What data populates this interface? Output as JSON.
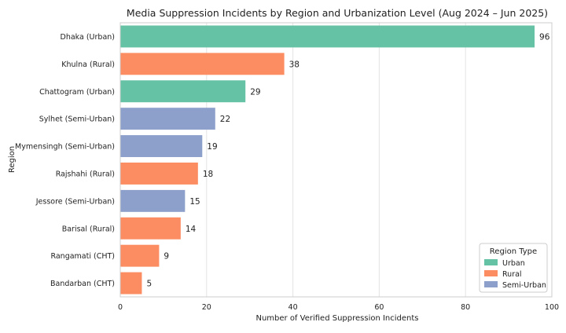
{
  "chart_data": {
    "type": "bar",
    "orientation": "horizontal",
    "title": "Media Suppression Incidents by Region and Urbanization Level (Aug 2024 – Jun 2025)",
    "xlabel": "Number of Verified Suppression Incidents",
    "ylabel": "Region",
    "xlim": [
      0,
      100
    ],
    "xticks": [
      0,
      20,
      40,
      60,
      80,
      100
    ],
    "grid": "vertical",
    "categories": [
      "Dhaka (Urban)",
      "Khulna (Rural)",
      "Chattogram (Urban)",
      "Sylhet (Semi-Urban)",
      "Mymensingh (Semi-Urban)",
      "Rajshahi (Rural)",
      "Jessore (Semi-Urban)",
      "Barisal (Rural)",
      "Rangamati (CHT)",
      "Bandarban (CHT)"
    ],
    "values": [
      96,
      38,
      29,
      22,
      19,
      18,
      15,
      14,
      9,
      5
    ],
    "bar_types": [
      "Urban",
      "Rural",
      "Urban",
      "Semi-Urban",
      "Semi-Urban",
      "Rural",
      "Semi-Urban",
      "Rural",
      "Rural",
      "Rural"
    ],
    "legend": {
      "title": "Region Type",
      "placement": "bottom-right",
      "entries": [
        {
          "label": "Urban",
          "color": "#66c2a5"
        },
        {
          "label": "Rural",
          "color": "#fc8d62"
        },
        {
          "label": "Semi-Urban",
          "color": "#8da0cb"
        }
      ]
    }
  }
}
